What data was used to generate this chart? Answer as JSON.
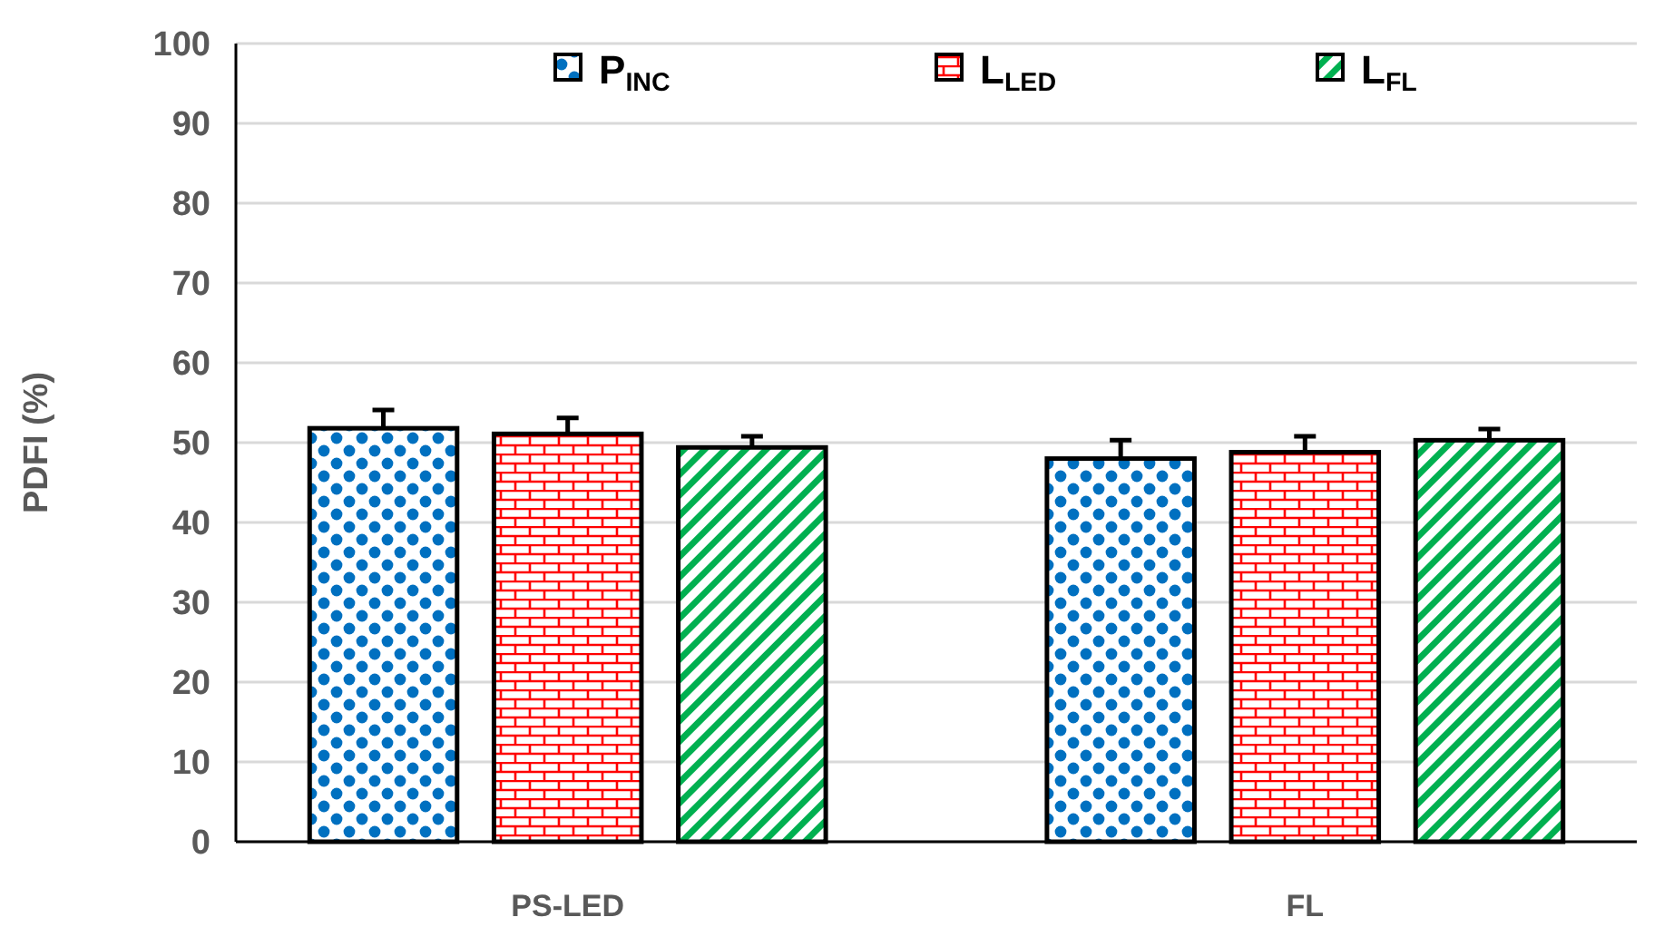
{
  "chart_data": {
    "type": "bar",
    "ylabel": "PDFI (%)",
    "categories": [
      "PS-LED",
      "FL"
    ],
    "series": [
      {
        "name": "P$_{INC}$",
        "color": "#0070c0",
        "values": [
          51.8,
          48.0
        ],
        "errors": [
          [
            51.8,
            54.1
          ],
          [
            48.0,
            50.3
          ]
        ]
      },
      {
        "name": "L$_{LED}$",
        "color": "#ff0000",
        "values": [
          51.1,
          48.8
        ],
        "errors": [
          [
            51.1,
            53.1
          ],
          [
            48.8,
            50.8
          ]
        ]
      },
      {
        "name": "L$_{FL}$",
        "color": "#00b050",
        "values": [
          49.4,
          50.3
        ],
        "errors": [
          [
            49.4,
            50.8
          ],
          [
            50.3,
            51.7
          ]
        ]
      }
    ],
    "ylim": [
      0,
      100
    ],
    "yticks": [
      0,
      10,
      20,
      30,
      40,
      50,
      60,
      70,
      80,
      90,
      100
    ],
    "grid": "y",
    "legend": "top"
  }
}
